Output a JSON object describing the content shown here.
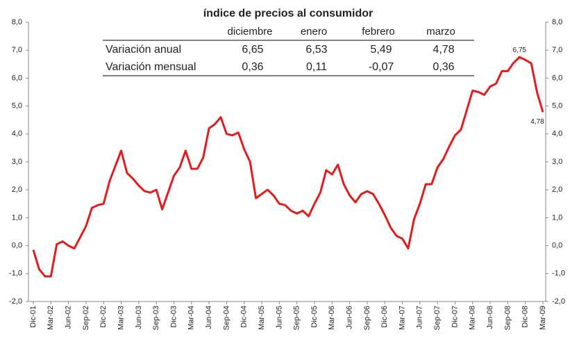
{
  "chart_data": {
    "type": "line",
    "title": "índice de precios al consumidor",
    "categories": [
      "Dic-01",
      null,
      null,
      "Mar-02",
      null,
      null,
      "Jun-02",
      null,
      null,
      "Sep-02",
      null,
      null,
      "Dic-02",
      null,
      null,
      "Mar-03",
      null,
      null,
      "Jun-03",
      null,
      null,
      "Sep-03",
      null,
      null,
      "Dic-03",
      null,
      null,
      "Mar-04",
      null,
      null,
      "Jun-04",
      null,
      null,
      "Sep-04",
      null,
      null,
      "Dic-04",
      null,
      null,
      "Mar-05",
      null,
      null,
      "Jun-05",
      null,
      null,
      "Sep-05",
      null,
      null,
      "Dic-05",
      null,
      null,
      "Mar-06",
      null,
      null,
      "Jun-06",
      null,
      null,
      "Sep-06",
      null,
      null,
      "Dic-06",
      null,
      null,
      "Mar-07",
      null,
      null,
      "Jun-07",
      null,
      null,
      "Sep-07",
      null,
      null,
      "Dic-07",
      null,
      null,
      "Mar-08",
      null,
      null,
      "Jun-08",
      null,
      null,
      "Sep-08",
      null,
      null,
      "Dic-08",
      null,
      null,
      "Mar-09"
    ],
    "series": [
      {
        "color": "#e41b1b",
        "values": [
          -0.15,
          -0.85,
          -1.1,
          -1.1,
          0.05,
          0.15,
          0.0,
          -0.1,
          0.3,
          0.7,
          1.35,
          1.45,
          1.5,
          2.3,
          2.85,
          3.4,
          2.6,
          2.4,
          2.15,
          1.95,
          1.9,
          2.0,
          1.3,
          1.9,
          2.5,
          2.8,
          3.4,
          2.75,
          2.75,
          3.15,
          4.2,
          4.35,
          4.6,
          4.0,
          3.95,
          4.05,
          3.45,
          3.0,
          1.7,
          1.85,
          2.0,
          1.8,
          1.5,
          1.45,
          1.25,
          1.15,
          1.25,
          1.05,
          1.5,
          1.9,
          2.7,
          2.55,
          2.9,
          2.2,
          1.8,
          1.55,
          1.85,
          1.95,
          1.85,
          1.5,
          1.1,
          0.65,
          0.35,
          0.25,
          -0.1,
          0.95,
          1.5,
          2.2,
          2.2,
          2.8,
          3.1,
          3.55,
          3.95,
          4.15,
          4.85,
          5.55,
          5.5,
          5.4,
          5.7,
          5.8,
          6.25,
          6.25,
          6.55,
          6.75,
          6.65,
          6.53,
          5.49,
          4.78
        ],
        "value_labels": [
          null,
          null,
          null,
          null,
          null,
          null,
          null,
          null,
          null,
          null,
          null,
          null,
          null,
          null,
          null,
          null,
          null,
          null,
          null,
          null,
          null,
          null,
          null,
          null,
          null,
          null,
          null,
          null,
          null,
          null,
          null,
          null,
          null,
          null,
          null,
          null,
          null,
          null,
          null,
          null,
          null,
          null,
          null,
          null,
          null,
          null,
          null,
          null,
          null,
          null,
          null,
          null,
          null,
          null,
          null,
          null,
          null,
          null,
          null,
          null,
          null,
          null,
          null,
          null,
          null,
          null,
          null,
          null,
          null,
          null,
          null,
          null,
          null,
          null,
          null,
          null,
          null,
          null,
          null,
          null,
          null,
          null,
          null,
          "6,75",
          null,
          null,
          null,
          "4,78"
        ]
      }
    ],
    "ylim": [
      -2,
      8
    ],
    "yticks": [
      {
        "value": -2,
        "label": "-2,0"
      },
      {
        "value": -1,
        "label": "-1,0"
      },
      {
        "value": 0,
        "label": "0,0"
      },
      {
        "value": 1,
        "label": "1,0"
      },
      {
        "value": 2,
        "label": "2,0"
      },
      {
        "value": 3,
        "label": "3,0"
      },
      {
        "value": 4,
        "label": "4,0"
      },
      {
        "value": 5,
        "label": "5,0"
      },
      {
        "value": 6,
        "label": "6,0"
      },
      {
        "value": 7,
        "label": "7,0"
      },
      {
        "value": 8,
        "label": "8,0"
      }
    ],
    "y2lim": [
      -2,
      8
    ],
    "y2ticks": [
      {
        "value": -2,
        "label": "-2,0"
      },
      {
        "value": -1,
        "label": "-1,0"
      },
      {
        "value": 0,
        "label": "0,0"
      },
      {
        "value": 1,
        "label": "1,0"
      },
      {
        "value": 2,
        "label": "2,0"
      },
      {
        "value": 3,
        "label": "3,0"
      },
      {
        "value": 4,
        "label": "4,0"
      },
      {
        "value": 5,
        "label": "5,0"
      },
      {
        "value": 6,
        "label": "6,0"
      },
      {
        "value": 7,
        "label": "7,0"
      },
      {
        "value": 8,
        "label": "8,0"
      }
    ],
    "table": {
      "columns": [
        "diciembre",
        "enero",
        "febrero",
        "marzo"
      ],
      "rows": [
        {
          "label": "Variación anual",
          "values": [
            "6,65",
            "6,53",
            "5,49",
            "4,78"
          ]
        },
        {
          "label": "Variación mensual",
          "values": [
            "0,36",
            "0,11",
            "-0,07",
            "0,36"
          ]
        }
      ]
    }
  }
}
